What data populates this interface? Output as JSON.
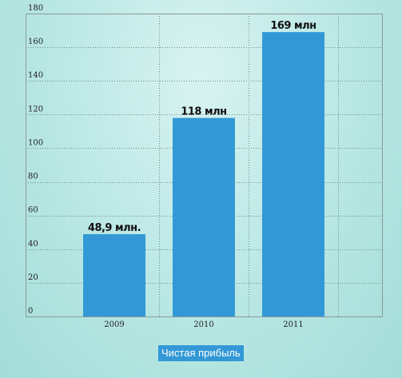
{
  "chart_data": {
    "type": "bar",
    "categories": [
      "2009",
      "2010",
      "2011"
    ],
    "values": [
      48.9,
      118,
      169
    ],
    "data_labels": [
      "48,9 млн.",
      "118 млн",
      "169 млн"
    ],
    "yticks": [
      0,
      20,
      40,
      60,
      80,
      100,
      120,
      140,
      160,
      180
    ],
    "ylim": [
      0,
      180
    ],
    "grid": true,
    "bar_color": "#3399d6",
    "legend": {
      "label": "Чистая прибыль",
      "placement": "bottom-center"
    }
  }
}
